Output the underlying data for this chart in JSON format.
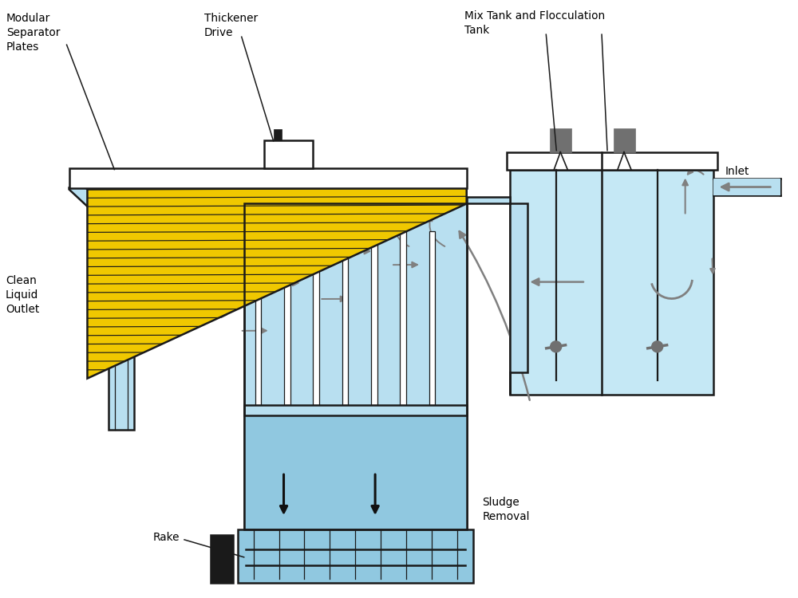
{
  "bg_color": "#ffffff",
  "light_blue": "#b8dff0",
  "light_blue2": "#c5e8f5",
  "mid_blue": "#90c8e0",
  "yellow": "#f0c800",
  "black": "#1a1a1a",
  "gray_arrow": "#808080",
  "dark_gray": "#707070",
  "labels": {
    "modular_separator": "Modular\nSeparator\nPlates",
    "thickener_drive": "Thickener\nDrive",
    "mix_tank": "Mix Tank and Flocculation\nTank",
    "inlet": "Inlet",
    "clean_liquid": "Clean\nLiquid\nOutlet",
    "sludge_removal": "Sludge\nRemoval",
    "rake": "Rake"
  }
}
